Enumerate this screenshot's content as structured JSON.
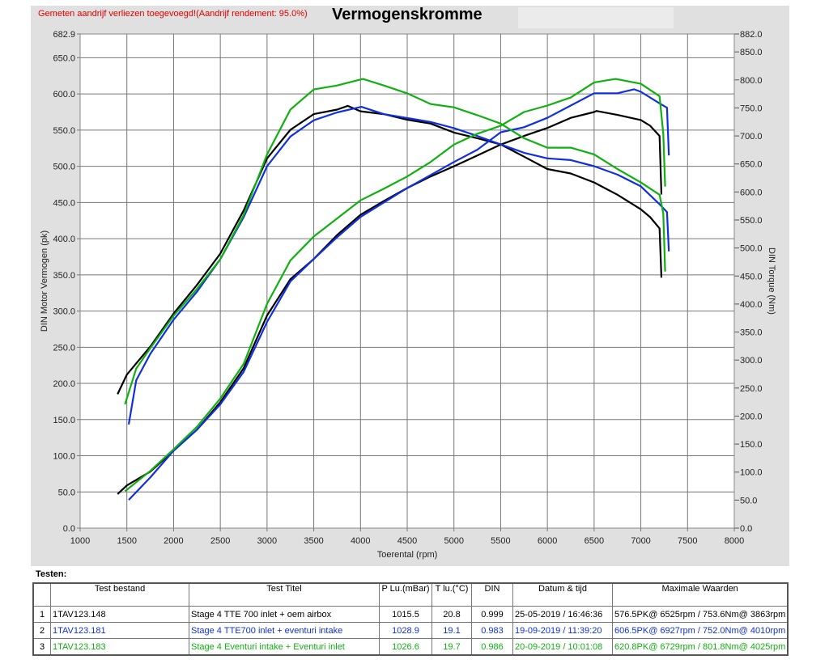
{
  "header": {
    "note": "Gemeten aandrijf verliezen toegevoegd!(Aandrijf rendement: 95.0%)",
    "title": "Vermogenskromme"
  },
  "chart_data": {
    "type": "line",
    "title": "Vermogenskromme",
    "xlabel": "Toerental (rpm)",
    "ylabel": "DIN Motor Vermogen (pk)",
    "y2label": "DIN Torque (Nm)",
    "xlim": [
      1000,
      8000
    ],
    "ylim": [
      0,
      682.9
    ],
    "y2lim": [
      0,
      882.0
    ],
    "xticks": [
      1000,
      1500,
      2000,
      2500,
      3000,
      3500,
      4000,
      4500,
      5000,
      5500,
      6000,
      6500,
      7000,
      7500,
      8000
    ],
    "yticks": [
      "0.0",
      "50.0",
      "100.0",
      "150.0",
      "200.0",
      "250.0",
      "300.0",
      "350.0",
      "400.0",
      "450.0",
      "500.0",
      "550.0",
      "600.0",
      "650.0",
      "682.9"
    ],
    "y2ticks": [
      "0.0",
      "50.0",
      "100.0",
      "150.0",
      "200.0",
      "250.0",
      "300.0",
      "350.0",
      "400.0",
      "450.0",
      "500.0",
      "550.0",
      "600.0",
      "650.0",
      "700.0",
      "750.0",
      "800.0",
      "850.0",
      "882.0"
    ],
    "grid": true,
    "series": [
      {
        "test": 1,
        "quantity": "power",
        "axis": "left",
        "color": "#000000",
        "x": [
          1400,
          1500,
          1750,
          2000,
          2250,
          2500,
          2750,
          3000,
          3250,
          3500,
          3750,
          4000,
          4250,
          4500,
          4750,
          5000,
          5250,
          5500,
          5750,
          6000,
          6250,
          6500,
          6525,
          6750,
          7000,
          7100,
          7200,
          7220
        ],
        "y": [
          47,
          59,
          78,
          107,
          136,
          174,
          221,
          294,
          344,
          372,
          405,
          433,
          452,
          470,
          486,
          500,
          515,
          530,
          542,
          553,
          567,
          575,
          576.5,
          571,
          564,
          556,
          542,
          461
        ]
      },
      {
        "test": 1,
        "quantity": "torque",
        "axis": "right",
        "color": "#000000",
        "x": [
          1400,
          1500,
          1750,
          2000,
          2250,
          2500,
          2750,
          3000,
          3250,
          3500,
          3750,
          3863,
          4000,
          4250,
          4500,
          4750,
          5000,
          5250,
          5500,
          5750,
          6000,
          6250,
          6500,
          6750,
          7000,
          7100,
          7200,
          7220
        ],
        "y": [
          239,
          274,
          324,
          383,
          434,
          490,
          567,
          660,
          711,
          739,
          747,
          753.6,
          744,
          739,
          729,
          722,
          706,
          696,
          685,
          663,
          641,
          633,
          617,
          595,
          569,
          555,
          535,
          447
        ]
      },
      {
        "test": 2,
        "quantity": "power",
        "axis": "left",
        "color": "#1030e0",
        "x": [
          1520,
          1750,
          2000,
          2250,
          2500,
          2750,
          3000,
          3250,
          3500,
          3750,
          4000,
          4250,
          4500,
          4750,
          5000,
          5250,
          5500,
          5750,
          6000,
          6250,
          6500,
          6750,
          6927,
          7000,
          7200,
          7280,
          7300
        ],
        "y": [
          39,
          70,
          107,
          136,
          171,
          216,
          285,
          341,
          372,
          402,
          430,
          450,
          470,
          488,
          506,
          523,
          547,
          554,
          567,
          584,
          601,
          601,
          606.5,
          603,
          587,
          581,
          515
        ]
      },
      {
        "test": 2,
        "quantity": "torque",
        "axis": "right",
        "color": "#1030e0",
        "x": [
          1520,
          1600,
          1750,
          2000,
          2250,
          2500,
          2750,
          3000,
          3250,
          3500,
          3750,
          4010,
          4250,
          4500,
          4750,
          5000,
          5250,
          5500,
          5750,
          6000,
          6250,
          6500,
          6750,
          7000,
          7200,
          7280,
          7300
        ],
        "y": [
          185,
          264,
          311,
          372,
          422,
          480,
          555,
          646,
          699,
          728,
          742,
          752,
          739,
          732,
          725,
          714,
          700,
          685,
          670,
          660,
          657,
          646,
          631,
          610,
          578,
          564,
          494
        ]
      },
      {
        "test": 3,
        "quantity": "power",
        "axis": "left",
        "color": "#10b010",
        "x": [
          1480,
          1750,
          2000,
          2250,
          2500,
          2750,
          3000,
          3250,
          3500,
          3750,
          4000,
          4250,
          4500,
          4750,
          5000,
          5250,
          5500,
          5750,
          6000,
          6250,
          6500,
          6729,
          7000,
          7200,
          7240,
          7260
        ],
        "y": [
          51,
          79,
          109,
          140,
          179,
          227,
          310,
          370,
          403,
          428,
          453,
          469,
          486,
          506,
          530,
          545,
          556,
          575,
          584,
          595,
          616,
          620.8,
          614,
          597,
          545,
          472
        ]
      },
      {
        "test": 3,
        "quantity": "torque",
        "axis": "right",
        "color": "#10b010",
        "x": [
          1480,
          1600,
          1750,
          2000,
          2250,
          2500,
          2750,
          3000,
          3250,
          3500,
          3750,
          4025,
          4250,
          4500,
          4750,
          5000,
          5250,
          5500,
          5750,
          6000,
          6250,
          6500,
          6750,
          7000,
          7200,
          7240,
          7260
        ],
        "y": [
          221,
          285,
          321,
          379,
          427,
          480,
          559,
          667,
          747,
          783,
          790,
          801.8,
          790,
          776,
          757,
          751,
          737,
          722,
          696,
          679,
          679,
          667,
          641,
          617,
          595,
          562,
          458
        ]
      }
    ]
  },
  "table": {
    "label": "Testen:",
    "headers": [
      "",
      "Test bestand",
      "Test Titel",
      "P Lu.(mBar)",
      "T lu.(°C)",
      "DIN",
      "Datum & tijd",
      "Maximale Waarden"
    ],
    "rows": [
      {
        "color": "#000000",
        "cells": [
          "1",
          "1TAV123.148",
          "Stage 4 TTE 700  inlet + oem airbox",
          "1015.5",
          "20.8",
          "0.999",
          "25-05-2019 / 16:46:36",
          "576.5PK@ 6525rpm / 753.6Nm@ 3863rpm"
        ]
      },
      {
        "color": "#1030e0",
        "cells": [
          "2",
          "1TAV123.181",
          "Stage 4 TTE700 inlet + eventuri intake",
          "1028.9",
          "19.1",
          "0.983",
          "19-09-2019 / 11:39:20",
          "606.5PK@ 6927rpm / 752.0Nm@ 4010rpm"
        ]
      },
      {
        "color": "#10b010",
        "cells": [
          "3",
          "1TAV123.183",
          "Stage 4 Eventuri intake + Eventuri inlet",
          "1026.6",
          "19.7",
          "0.986",
          "20-09-2019 / 10:01:08",
          "620.8PK@ 6729rpm / 801.8Nm@ 4025rpm"
        ]
      }
    ]
  }
}
